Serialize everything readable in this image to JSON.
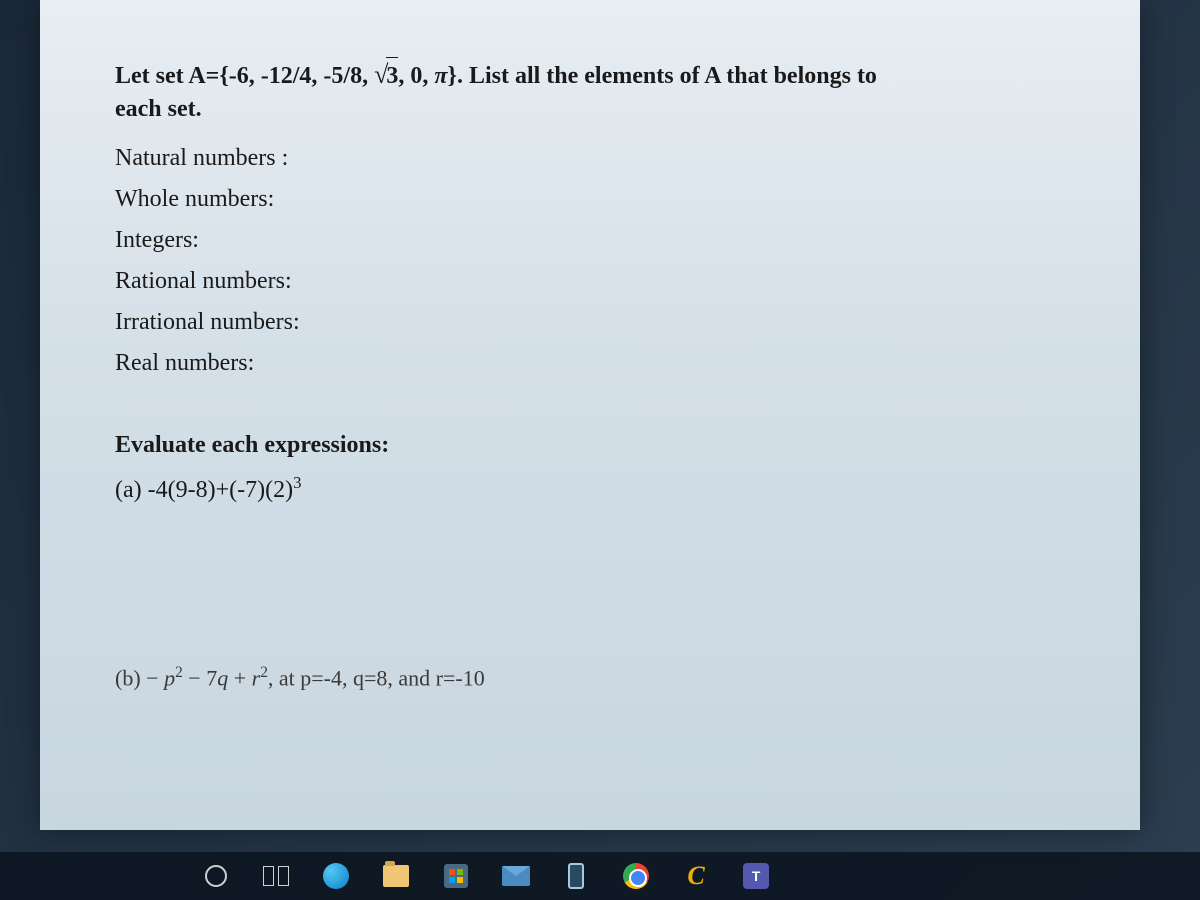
{
  "question": {
    "line1_pre": "Let set A={-6, -12/4, -5/8, ",
    "sqrt_val": "3",
    "line1_post": ", 0, ",
    "pi": "π",
    "line1_end": "}. List all the elements of A that belongs to",
    "line2": "each set."
  },
  "categories": {
    "natural": "Natural numbers :",
    "whole": "Whole numbers:",
    "integers": "Integers:",
    "rational": "Rational numbers:",
    "irrational": "Irrational numbers:",
    "real": "Real numbers:"
  },
  "evaluate": {
    "title": "Evaluate each expressions:",
    "a_label": "(a)  ",
    "a_expr": "-4(9-8)+(-7)(2)",
    "a_exp": "3",
    "b_label": "(b)   ",
    "b_pre": "− ",
    "b_p": "p",
    "b_exp1": "2",
    "b_mid1": " − 7",
    "b_q": "q",
    "b_mid2": " + ",
    "b_r": "r",
    "b_exp2": "2",
    "b_post": ", at p=-4, q=8, and r=-10"
  },
  "taskbar": {
    "teams_letter": "T"
  }
}
